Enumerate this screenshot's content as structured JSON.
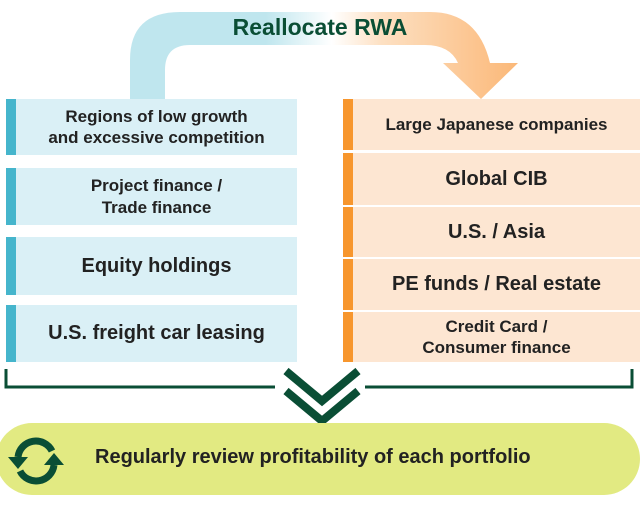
{
  "title": "Reallocate RWA",
  "reduce_items": [
    "Regions of low growth\nand excessive competition",
    "Project finance /\nTrade finance",
    "Equity holdings",
    "U.S. freight car leasing"
  ],
  "increase_items": [
    "Large Japanese companies",
    "Global CIB",
    "U.S. / Asia",
    "PE funds / Real estate",
    "Credit Card /\nConsumer finance"
  ],
  "conclusion": "Regularly review profitability of each portfolio",
  "colors": {
    "reduce": "#45b5cc",
    "increase": "#f7962d",
    "accent": "#0a4e35",
    "conclusion_bg": "#e2ea82"
  },
  "icons": [
    "refresh-cycle-icon",
    "double-chevron-down-icon",
    "curved-arrow-icon"
  ]
}
